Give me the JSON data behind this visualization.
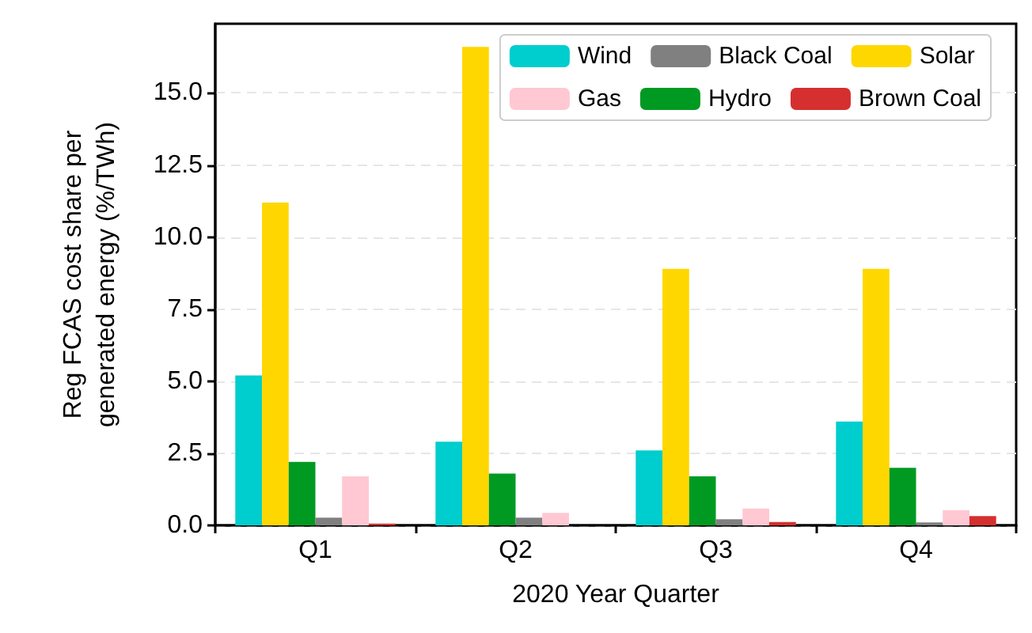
{
  "chart_data": {
    "type": "bar",
    "xlabel": "2020 Year Quarter",
    "ylabel": "Reg FCAS cost share per\ngenerated energy (%/TWh)",
    "categories": [
      "Q1",
      "Q2",
      "Q3",
      "Q4"
    ],
    "series": [
      {
        "name": "Wind",
        "color": "#00cdcd",
        "values": [
          5.2,
          2.9,
          2.6,
          3.6
        ]
      },
      {
        "name": "Solar",
        "color": "#ffd700",
        "values": [
          11.2,
          16.6,
          8.9,
          8.9
        ]
      },
      {
        "name": "Hydro",
        "color": "#009a22",
        "values": [
          2.2,
          1.8,
          1.7,
          2.0
        ]
      },
      {
        "name": "Black Coal",
        "color": "#808080",
        "values": [
          0.27,
          0.27,
          0.21,
          0.1
        ]
      },
      {
        "name": "Gas",
        "color": "#ffc8d2",
        "values": [
          1.7,
          0.43,
          0.58,
          0.53
        ]
      },
      {
        "name": "Brown Coal",
        "color": "#d62f2f",
        "values": [
          0.06,
          0,
          0.12,
          0.32
        ]
      }
    ],
    "ylim": [
      0,
      17.4
    ],
    "yticks": [
      {
        "value": 0,
        "label": "0.0"
      },
      {
        "value": 2.5,
        "label": "2.5"
      },
      {
        "value": 5,
        "label": "5.0"
      },
      {
        "value": 7.5,
        "label": "7.5"
      },
      {
        "value": 10,
        "label": "10.0"
      },
      {
        "value": 12.5,
        "label": "12.5"
      },
      {
        "value": 15,
        "label": "15.0"
      }
    ],
    "grid": "y",
    "legend": "top right"
  }
}
